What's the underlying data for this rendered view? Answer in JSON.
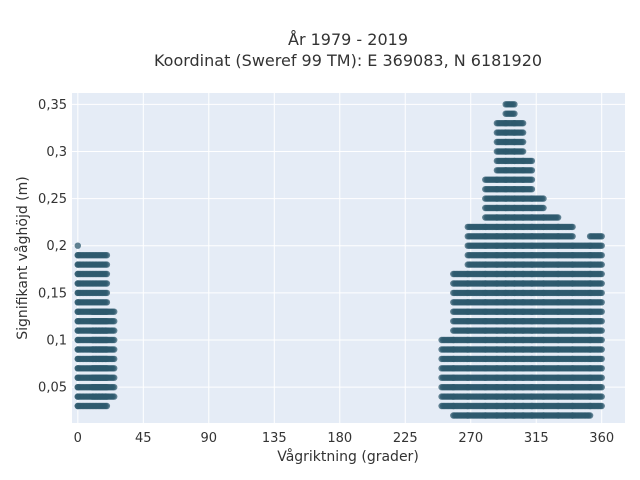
{
  "chart_data": {
    "type": "scatter",
    "title": "År 1979 - 2019",
    "subtitle": "Koordinat (Sweref 99 TM): E 369083, N 6181920",
    "xlabel": "Vågriktning (grader)",
    "ylabel": "Signifikant våghöjd (m)",
    "xlim": [
      -4,
      376
    ],
    "ylim": [
      0.012,
      0.362
    ],
    "x_ticks": [
      0,
      45,
      90,
      135,
      180,
      225,
      270,
      315,
      360
    ],
    "x_tick_labels": [
      "0",
      "45",
      "90",
      "135",
      "180",
      "225",
      "270",
      "315",
      "360"
    ],
    "y_ticks": [
      0.05,
      0.1,
      0.15,
      0.2,
      0.25,
      0.3,
      0.35
    ],
    "y_tick_labels": [
      "0,05",
      "0,1",
      "0,15",
      "0,2",
      "0,25",
      "0,3",
      "0,35"
    ],
    "grid": true,
    "legend": "none",
    "marker_color": "#2e5a6e",
    "plot_background": "#e5ecf6",
    "y_step": 0.01,
    "columns": [
      {
        "x_min": 0,
        "x_max": 0,
        "y_min": 0.03,
        "y_max": 0.2
      },
      {
        "x_min": 0,
        "x_max": 20,
        "y_min": 0.03,
        "y_max": 0.19
      },
      {
        "x_min": 10,
        "x_max": 25,
        "y_min": 0.04,
        "y_max": 0.13
      },
      {
        "x_min": 250,
        "x_max": 258,
        "y_min": 0.03,
        "y_max": 0.1
      },
      {
        "x_min": 258,
        "x_max": 268,
        "y_min": 0.02,
        "y_max": 0.17
      },
      {
        "x_min": 268,
        "x_max": 280,
        "y_min": 0.02,
        "y_max": 0.22
      },
      {
        "x_min": 280,
        "x_max": 288,
        "y_min": 0.02,
        "y_max": 0.27
      },
      {
        "x_min": 288,
        "x_max": 294,
        "y_min": 0.02,
        "y_max": 0.33
      },
      {
        "x_min": 294,
        "x_max": 300,
        "y_min": 0.02,
        "y_max": 0.35
      },
      {
        "x_min": 300,
        "x_max": 306,
        "y_min": 0.02,
        "y_max": 0.33
      },
      {
        "x_min": 306,
        "x_max": 312,
        "y_min": 0.02,
        "y_max": 0.29
      },
      {
        "x_min": 312,
        "x_max": 320,
        "y_min": 0.02,
        "y_max": 0.25
      },
      {
        "x_min": 320,
        "x_max": 330,
        "y_min": 0.02,
        "y_max": 0.23
      },
      {
        "x_min": 330,
        "x_max": 340,
        "y_min": 0.02,
        "y_max": 0.22
      },
      {
        "x_min": 340,
        "x_max": 352,
        "y_min": 0.02,
        "y_max": 0.2
      },
      {
        "x_min": 352,
        "x_max": 360,
        "y_min": 0.03,
        "y_max": 0.21
      }
    ]
  }
}
